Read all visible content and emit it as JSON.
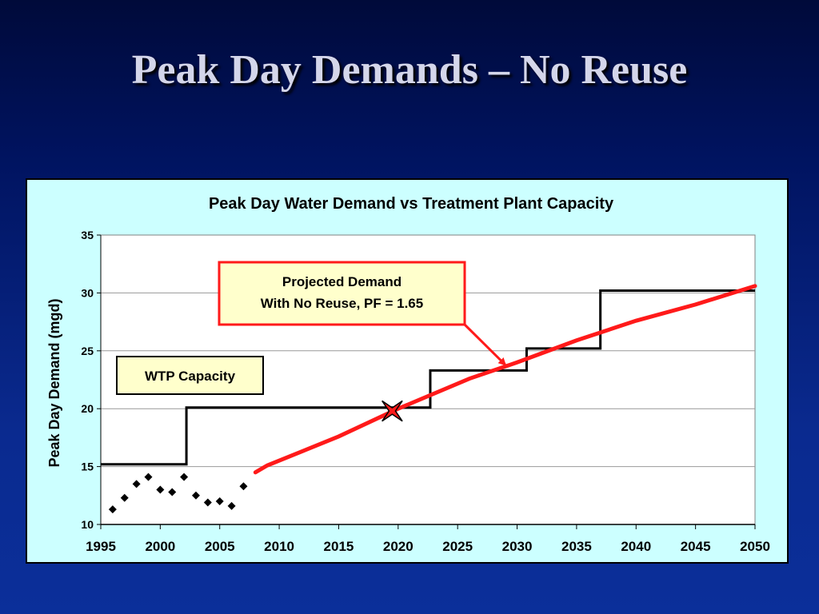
{
  "slide": {
    "title": "Peak Day Demands – No Reuse"
  },
  "colors": {
    "plot_background": "#ffffff",
    "chart_background": "#ccffff",
    "projection_line": "#ff1a1a",
    "capacity_line": "#000000",
    "callout_fill": "#ffffcc",
    "callout_red_border": "#ff1a1a"
  },
  "chart_data": {
    "type": "line",
    "title": "Peak Day Water Demand vs Treatment Plant Capacity",
    "xlabel": "",
    "ylabel": "Peak Day Demand (mgd)",
    "xlim": [
      1995,
      2050
    ],
    "ylim": [
      10,
      35
    ],
    "x_ticks": [
      1995,
      2000,
      2005,
      2010,
      2015,
      2020,
      2025,
      2030,
      2035,
      2040,
      2045,
      2050
    ],
    "y_ticks": [
      10,
      15,
      20,
      25,
      30,
      35
    ],
    "grid": "horizontal",
    "legend": "none",
    "series": [
      {
        "kind": "scatter",
        "marker": "diamond",
        "x": [
          1996,
          1997,
          1998,
          1999,
          2000,
          2001,
          2002,
          2003,
          2004,
          2005,
          2006,
          2007
        ],
        "y": [
          11.3,
          12.3,
          13.5,
          14.1,
          13.0,
          12.8,
          14.1,
          12.5,
          11.9,
          12.0,
          11.6,
          13.3
        ]
      },
      {
        "kind": "step",
        "x": [
          1995,
          2002.2,
          2002.2,
          2022.7,
          2022.7,
          2030.8,
          2030.8,
          2037,
          2037,
          2050
        ],
        "y": [
          15.2,
          15.2,
          20.1,
          20.1,
          23.3,
          23.3,
          25.2,
          25.2,
          30.2,
          30.2
        ]
      },
      {
        "kind": "line",
        "x": [
          2008,
          2009,
          2015,
          2020,
          2026,
          2030,
          2035,
          2040,
          2045,
          2050
        ],
        "y": [
          14.5,
          15.1,
          17.6,
          20.0,
          22.6,
          24.0,
          25.9,
          27.6,
          29.0,
          30.6
        ]
      }
    ],
    "marker_point": {
      "x": 2019.5,
      "y": 19.8,
      "shape": "x-star"
    },
    "annotations": [
      {
        "id": "projected-demand",
        "lines": [
          "Projected Demand",
          "With No Reuse, PF = 1.65"
        ],
        "border": "red",
        "arrow_to": {
          "x": 2029,
          "y": 23.8
        }
      },
      {
        "id": "wtp-capacity",
        "lines": [
          "WTP Capacity"
        ],
        "border": "black"
      }
    ]
  }
}
